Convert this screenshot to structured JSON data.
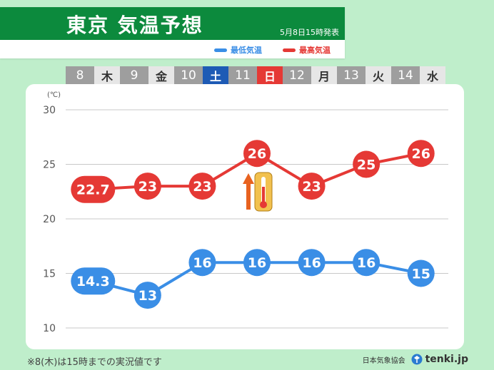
{
  "header": {
    "title": "東京 気温予想",
    "issued": "5月8日15時発表",
    "legend_min": "最低気温",
    "legend_max": "最高気温"
  },
  "days": [
    {
      "num": "8",
      "weekday": "木",
      "type": "normal"
    },
    {
      "num": "9",
      "weekday": "金",
      "type": "normal"
    },
    {
      "num": "10",
      "weekday": "土",
      "type": "sat"
    },
    {
      "num": "11",
      "weekday": "日",
      "type": "sun"
    },
    {
      "num": "12",
      "weekday": "月",
      "type": "normal"
    },
    {
      "num": "13",
      "weekday": "火",
      "type": "normal"
    },
    {
      "num": "14",
      "weekday": "水",
      "type": "normal"
    }
  ],
  "chart_data": {
    "type": "line",
    "categories": [
      "8",
      "9",
      "10",
      "11",
      "12",
      "13",
      "14"
    ],
    "unit_label": "(℃)",
    "ylim": [
      10,
      30
    ],
    "yticks": [
      10,
      15,
      20,
      25,
      30
    ],
    "grid": true,
    "legend": "top-right",
    "series": [
      {
        "name": "最高気温",
        "color": "#e53935",
        "values": [
          22.7,
          23,
          23,
          26,
          23,
          25,
          26
        ],
        "labels": [
          "22.7",
          "23",
          "23",
          "26",
          "23",
          "25",
          "26"
        ]
      },
      {
        "name": "最低気温",
        "color": "#3a8ee6",
        "values": [
          14.3,
          13,
          16,
          16,
          16,
          16,
          15
        ],
        "labels": [
          "14.3",
          "13",
          "16",
          "16",
          "16",
          "16",
          "15"
        ]
      }
    ],
    "annotation": {
      "icon": "thermometer-rising-icon",
      "at_category": "11"
    }
  },
  "footer": {
    "note": "※8(木)は15時までの実況値です",
    "org": "日本気象協会",
    "brand": "tenki.jp"
  }
}
